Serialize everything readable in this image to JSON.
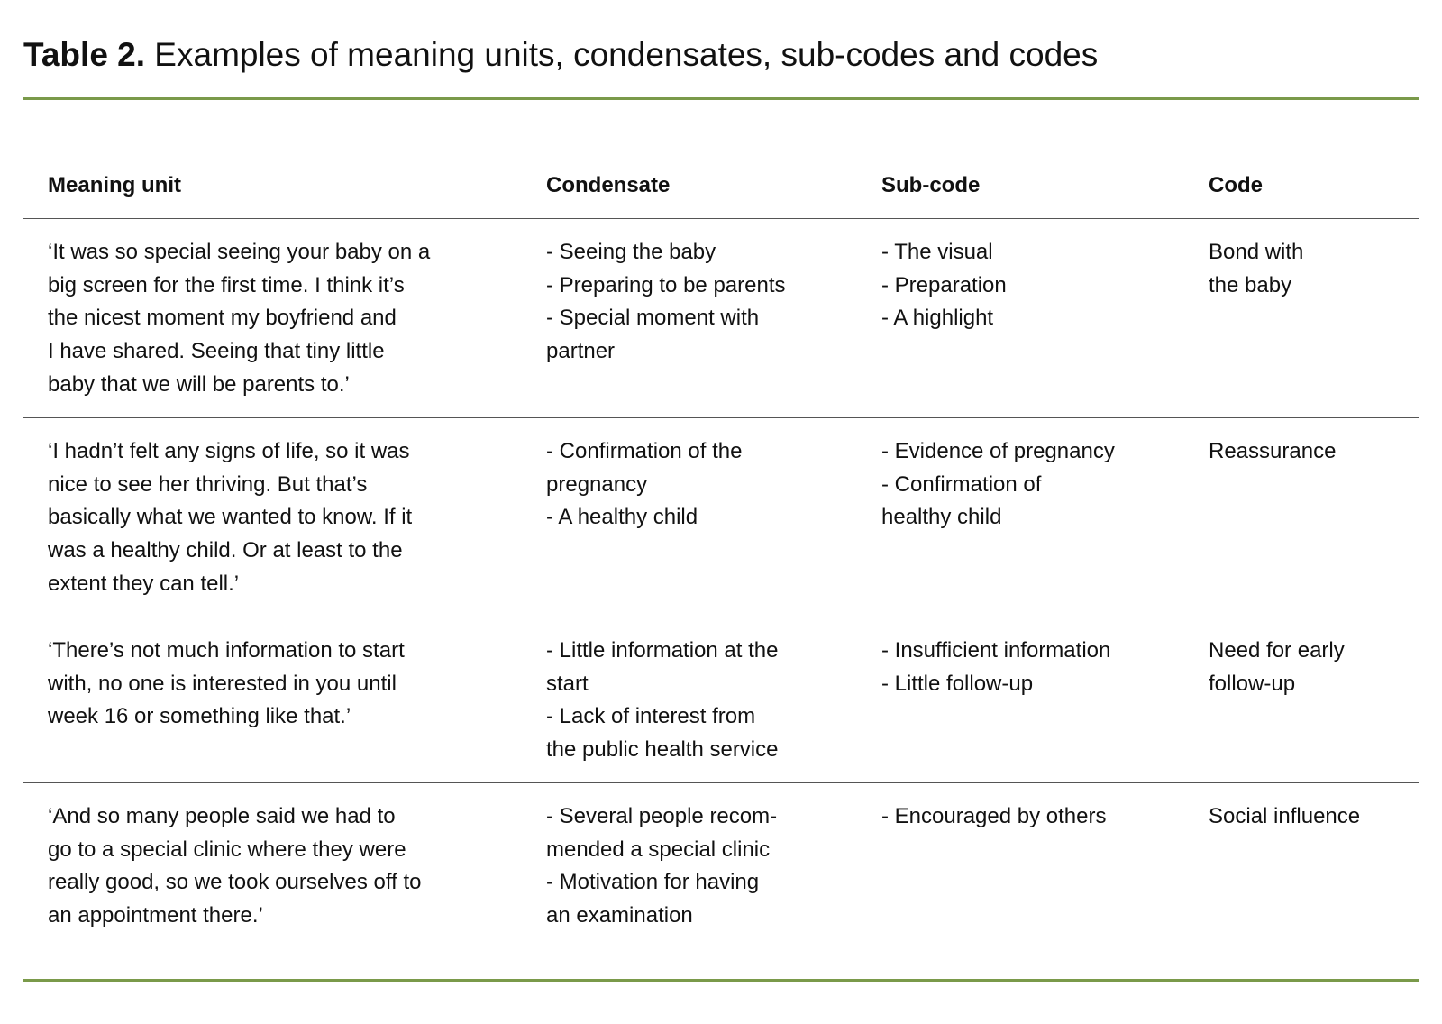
{
  "title": {
    "label": "Table 2.",
    "text": " Examples of meaning units, condensates, sub-codes and codes"
  },
  "colors": {
    "rule": "#7a9a4a"
  },
  "table": {
    "headers": [
      "Meaning unit",
      "Condensate",
      "Sub-code",
      "Code"
    ],
    "rows": [
      [
        [
          "‘It was so special seeing your baby on a",
          "big screen for the first time. I think it’s",
          "the nicest moment my boyfriend and",
          "I have shared. Seeing that tiny little",
          "baby that we will be parents to.’"
        ],
        [
          "- Seeing the baby",
          "- Preparing to be parents",
          "- Special moment with",
          "partner"
        ],
        [
          "- The visual",
          "- Preparation",
          "- A highlight"
        ],
        [
          "Bond with",
          "the baby"
        ]
      ],
      [
        [
          "‘I hadn’t felt any signs of life, so it was",
          "nice to see her thriving. But that’s",
          "basically what we wanted to know. If it",
          "was a healthy child. Or at least to the",
          "extent they can tell.’"
        ],
        [
          "- Confirmation of the",
          "pregnancy",
          "- A healthy child"
        ],
        [
          "- Evidence of pregnancy",
          "- Confirmation of",
          "healthy child"
        ],
        [
          "Reassurance"
        ]
      ],
      [
        [
          "‘There’s not much information to start",
          "with, no one is interested in you until",
          "week 16 or something like that.’"
        ],
        [
          "- Little information at the",
          "start",
          "- Lack of interest from",
          "the public health service"
        ],
        [
          "- Insufficient information",
          "- Little follow-up"
        ],
        [
          "Need for early",
          "follow-up"
        ]
      ],
      [
        [
          "‘And so many people said we had to",
          "go to a special clinic where they were",
          "really good, so we took ourselves off to",
          "an appointment there.’"
        ],
        [
          "- Several people recom-",
          "mended a special clinic",
          "- Motivation for having",
          "an examination"
        ],
        [
          "- Encouraged by others"
        ],
        [
          "Social influence"
        ]
      ]
    ]
  }
}
